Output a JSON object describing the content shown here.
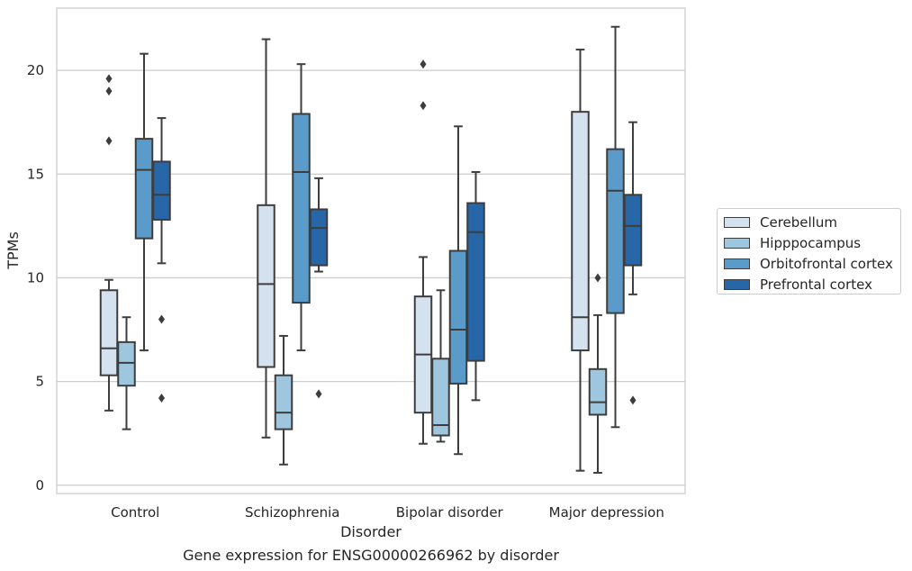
{
  "chart_data": {
    "type": "box",
    "title": "Gene expression for ENSG00000266962 by disorder",
    "xlabel": "Disorder",
    "ylabel": "TPMs",
    "ylim": [
      -0.4,
      23.0
    ],
    "yticks": [
      0,
      5,
      10,
      15,
      20
    ],
    "grid": "horizontal",
    "legend_position": "right",
    "categories": [
      "Control",
      "Schizophrenia",
      "Bipolar disorder",
      "Major depression"
    ],
    "series": [
      {
        "name": "Cerebellum",
        "color": "#d4e2f0",
        "boxes": [
          {
            "whisker_low": 3.6,
            "q1": 5.3,
            "median": 6.6,
            "q3": 9.4,
            "whisker_high": 9.9,
            "outliers": [
              16.6,
              19.0,
              19.6
            ]
          },
          {
            "whisker_low": 2.3,
            "q1": 5.7,
            "median": 9.7,
            "q3": 13.5,
            "whisker_high": 21.5,
            "outliers": []
          },
          {
            "whisker_low": 2.0,
            "q1": 3.5,
            "median": 6.3,
            "q3": 9.1,
            "whisker_high": 11.0,
            "outliers": [
              18.3,
              20.3
            ]
          },
          {
            "whisker_low": 0.7,
            "q1": 6.5,
            "median": 8.1,
            "q3": 18.0,
            "whisker_high": 21.0,
            "outliers": []
          }
        ]
      },
      {
        "name": "Hipppocampus",
        "color": "#9fc6df",
        "boxes": [
          {
            "whisker_low": 2.7,
            "q1": 4.8,
            "median": 5.9,
            "q3": 6.9,
            "whisker_high": 8.1,
            "outliers": []
          },
          {
            "whisker_low": 1.0,
            "q1": 2.7,
            "median": 3.5,
            "q3": 5.3,
            "whisker_high": 7.2,
            "outliers": []
          },
          {
            "whisker_low": 2.1,
            "q1": 2.4,
            "median": 2.9,
            "q3": 6.1,
            "whisker_high": 9.4,
            "outliers": []
          },
          {
            "whisker_low": 0.6,
            "q1": 3.4,
            "median": 4.0,
            "q3": 5.6,
            "whisker_high": 8.2,
            "outliers": [
              10.0
            ]
          }
        ]
      },
      {
        "name": "Orbitofrontal cortex",
        "color": "#5b9bc9",
        "boxes": [
          {
            "whisker_low": 6.5,
            "q1": 11.9,
            "median": 15.2,
            "q3": 16.7,
            "whisker_high": 20.8,
            "outliers": []
          },
          {
            "whisker_low": 6.5,
            "q1": 8.8,
            "median": 15.1,
            "q3": 17.9,
            "whisker_high": 20.3,
            "outliers": []
          },
          {
            "whisker_low": 1.5,
            "q1": 4.9,
            "median": 7.5,
            "q3": 11.3,
            "whisker_high": 17.3,
            "outliers": []
          },
          {
            "whisker_low": 2.8,
            "q1": 8.3,
            "median": 14.2,
            "q3": 16.2,
            "whisker_high": 22.1,
            "outliers": []
          }
        ]
      },
      {
        "name": "Prefrontal cortex",
        "color": "#2766a7",
        "boxes": [
          {
            "whisker_low": 10.7,
            "q1": 12.8,
            "median": 14.0,
            "q3": 15.6,
            "whisker_high": 17.7,
            "outliers": [
              4.2,
              8.0
            ]
          },
          {
            "whisker_low": 10.3,
            "q1": 10.6,
            "median": 12.4,
            "q3": 13.3,
            "whisker_high": 14.8,
            "outliers": [
              4.4
            ]
          },
          {
            "whisker_low": 4.1,
            "q1": 6.0,
            "median": 12.2,
            "q3": 13.6,
            "whisker_high": 15.1,
            "outliers": []
          },
          {
            "whisker_low": 9.2,
            "q1": 10.6,
            "median": 12.5,
            "q3": 14.0,
            "whisker_high": 17.5,
            "outliers": [
              4.1
            ]
          }
        ]
      }
    ]
  }
}
